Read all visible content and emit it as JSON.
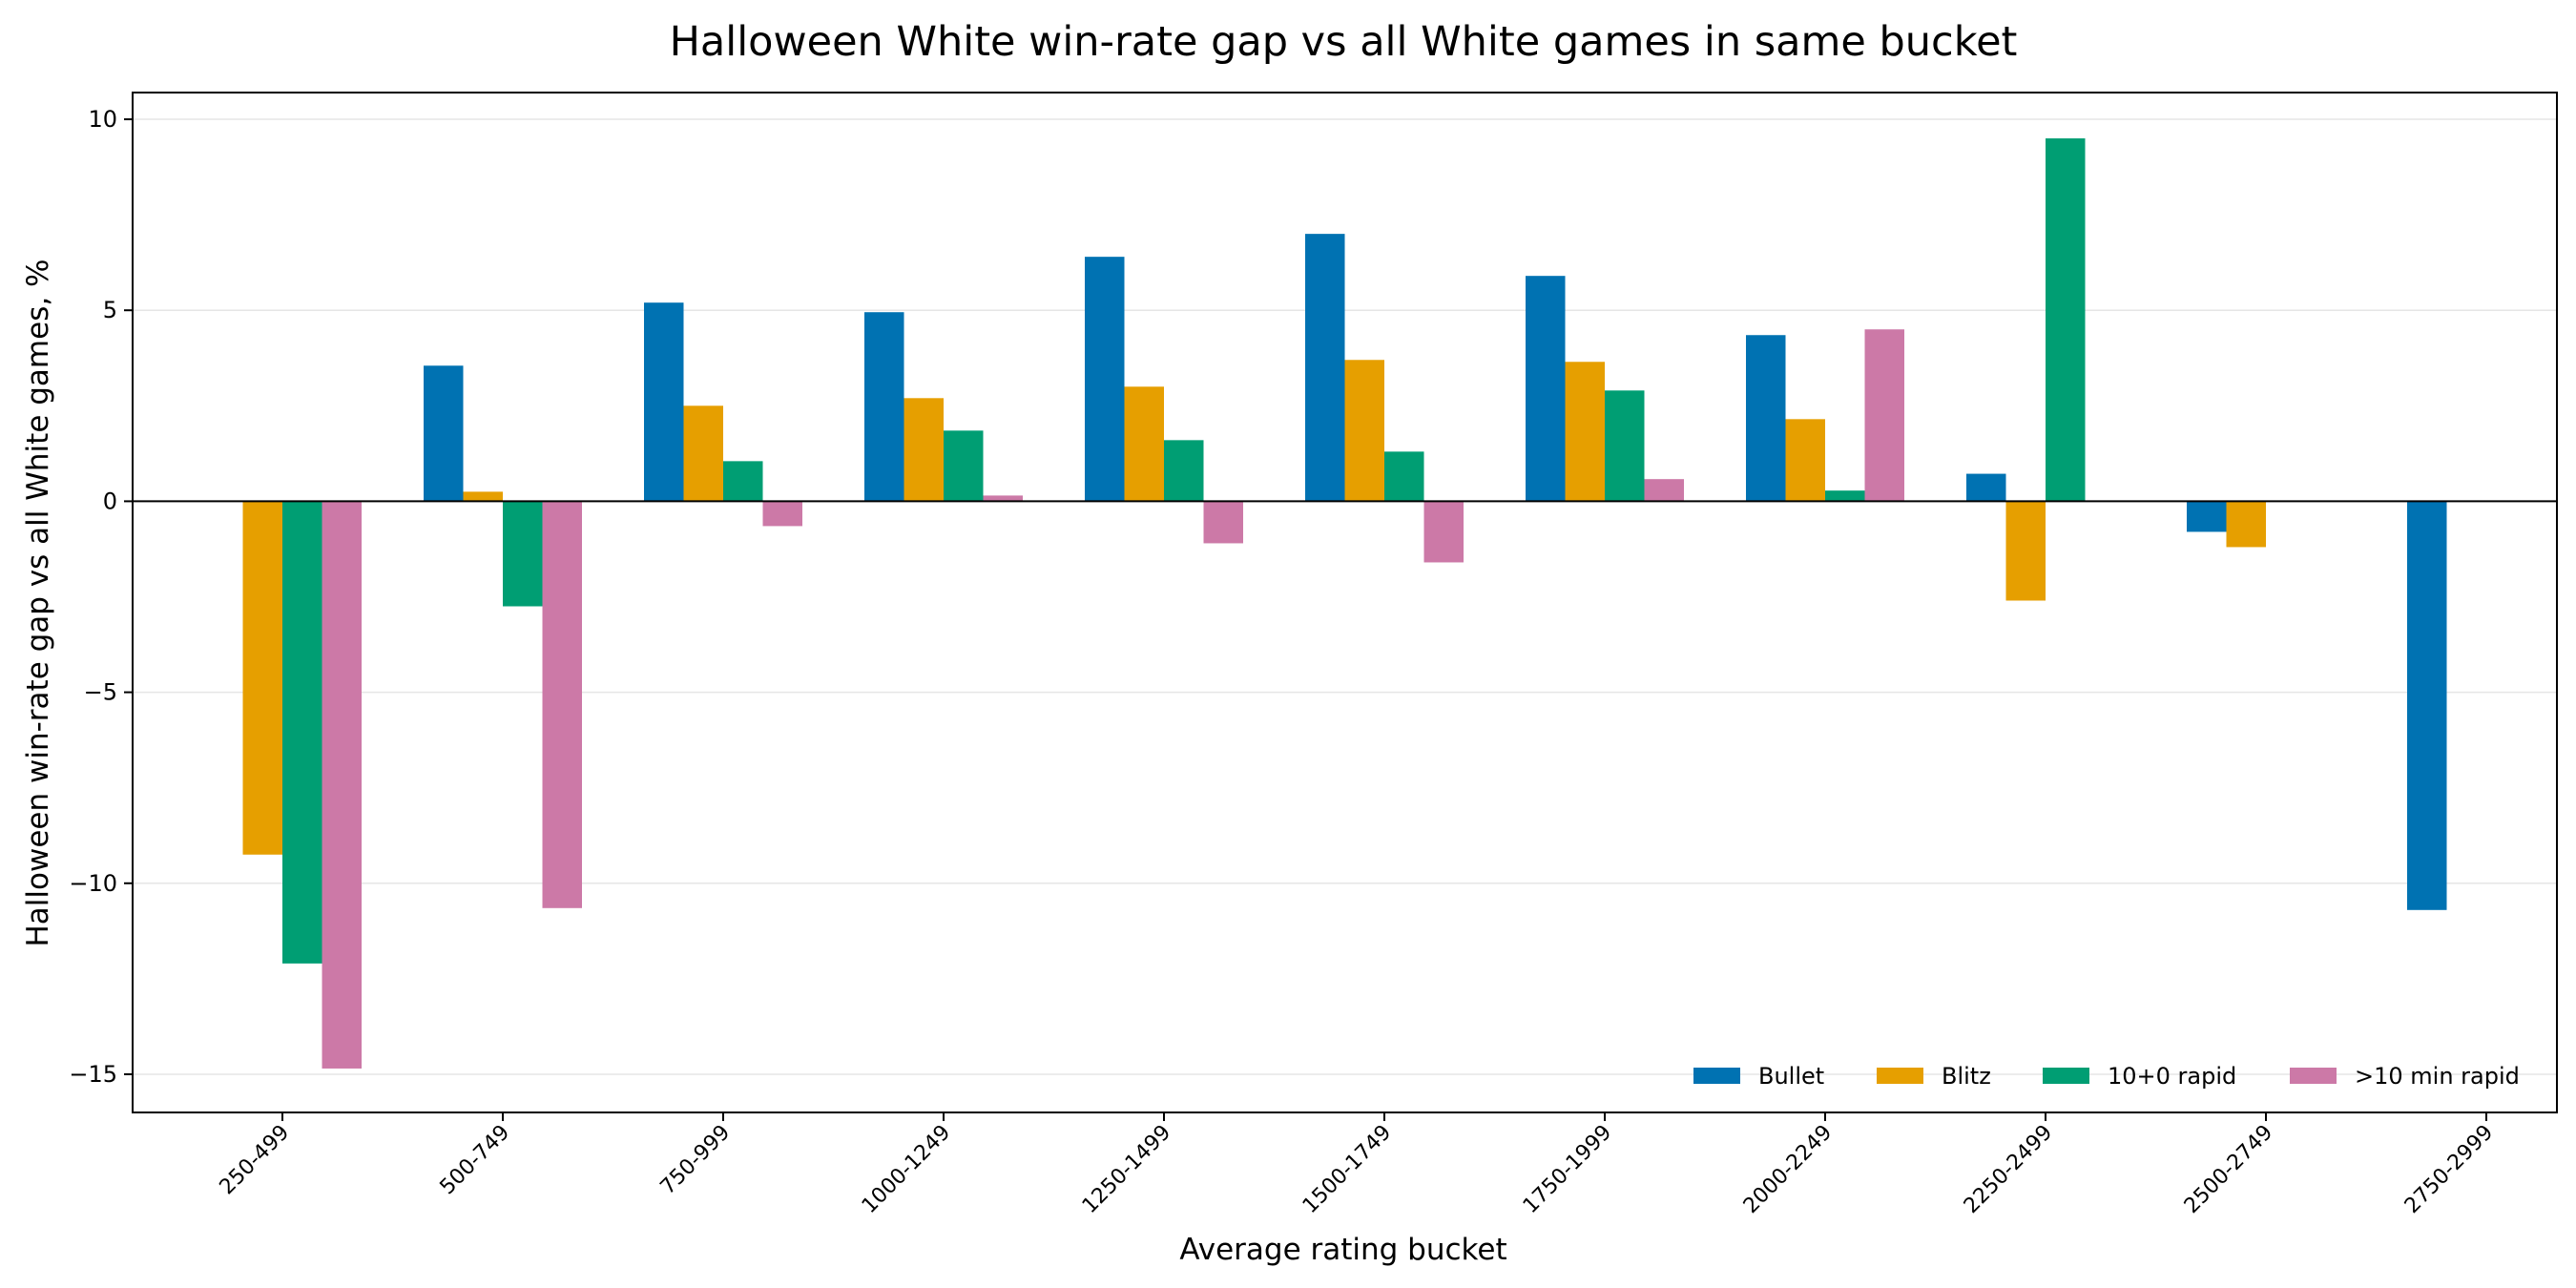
{
  "chart_data": {
    "type": "bar",
    "title": "Halloween White win-rate gap vs all White games in same bucket",
    "xlabel": "Average rating bucket",
    "ylabel": "Halloween win-rate gap vs all White games, %",
    "ylim": [
      -16,
      10.7
    ],
    "yticks": [
      10,
      5,
      0,
      -5,
      -10,
      -15
    ],
    "ytick_labels": [
      "10",
      "5",
      "0",
      "−5",
      "−10",
      "−15"
    ],
    "grid": true,
    "legend_position": "bottom-right",
    "categories": [
      "250-499",
      "500-749",
      "750-999",
      "1000-1249",
      "1250-1499",
      "1500-1749",
      "1750-1999",
      "2000-2249",
      "2250-2499",
      "2500-2749",
      "2750-2999"
    ],
    "series": [
      {
        "name": "Bullet",
        "color": "#0072B2",
        "values": [
          null,
          3.55,
          5.2,
          4.95,
          6.4,
          7.0,
          5.9,
          4.35,
          0.72,
          -0.8,
          -10.7
        ]
      },
      {
        "name": "Blitz",
        "color": "#E69F00",
        "values": [
          -9.25,
          0.25,
          2.5,
          2.7,
          3.0,
          3.7,
          3.65,
          2.15,
          -2.6,
          -1.2,
          null
        ]
      },
      {
        "name": "10+0 rapid",
        "color": "#009E73",
        "values": [
          -12.1,
          -2.75,
          1.05,
          1.85,
          1.6,
          1.3,
          2.9,
          0.28,
          9.5,
          null,
          null
        ]
      },
      {
        "name": ">10 min rapid",
        "color": "#CC79A7",
        "values": [
          -14.85,
          -10.65,
          -0.65,
          0.15,
          -1.1,
          -1.6,
          0.58,
          4.5,
          null,
          null,
          null
        ]
      }
    ]
  }
}
